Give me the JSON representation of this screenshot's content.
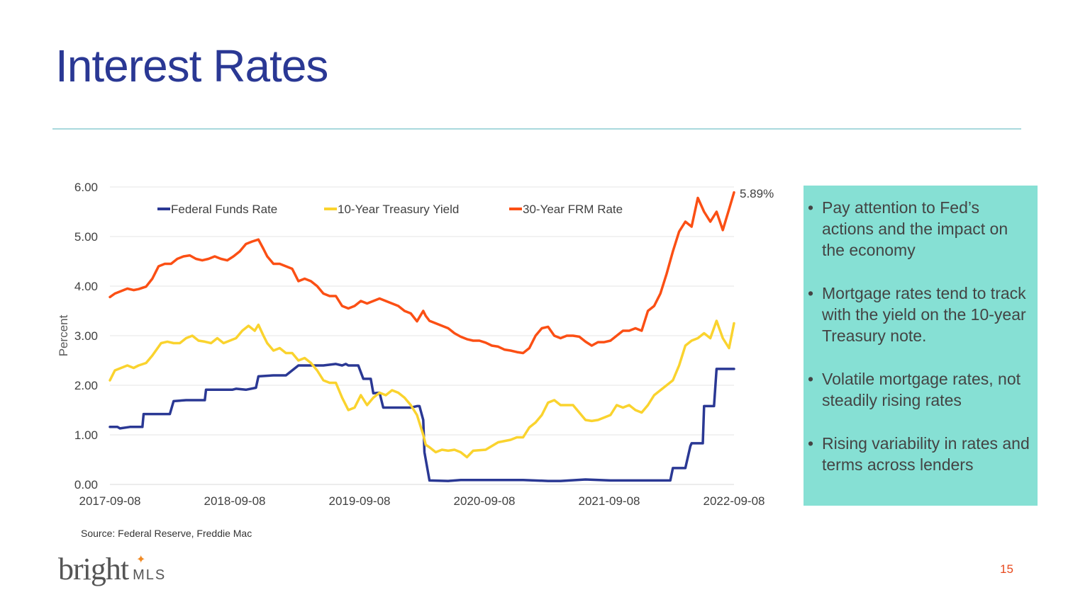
{
  "slide": {
    "title": "Interest Rates",
    "source": "Source: Federal Reserve, Freddie Mac",
    "logo_text": "bright",
    "logo_suffix": "MLS",
    "page_number": "15",
    "colors": {
      "title": "#2a3894",
      "rule": "#a9d9dd",
      "panel": "#86e0d4",
      "page_number": "#e8491d"
    }
  },
  "bullets": [
    "Pay attention to Fed’s actions and the impact on the economy",
    "Mortgage rates tend to track with the yield on the 10-year Treasury note.",
    "Volatile mortgage rates, not steadily rising rates",
    "Rising variability in rates and terms across lenders"
  ],
  "chart_data": {
    "type": "line",
    "ylabel": "Percent",
    "ylim": [
      0,
      6
    ],
    "yticks": [
      "0.00",
      "1.00",
      "2.00",
      "3.00",
      "4.00",
      "5.00",
      "6.00"
    ],
    "xlim": [
      2017.69,
      2022.69
    ],
    "xticks": [
      {
        "x": 2017.69,
        "label": "2017-09-08"
      },
      {
        "x": 2018.69,
        "label": "2018-09-08"
      },
      {
        "x": 2019.69,
        "label": "2019-09-08"
      },
      {
        "x": 2020.69,
        "label": "2020-09-08"
      },
      {
        "x": 2021.69,
        "label": "2021-09-08"
      },
      {
        "x": 2022.69,
        "label": "2022-09-08"
      }
    ],
    "grid": true,
    "end_annotation": "5.89%",
    "series": [
      {
        "name": "Federal Funds Rate",
        "color": "#2a3894",
        "x": [
          2017.69,
          2017.75,
          2017.77,
          2017.85,
          2017.95,
          2017.96,
          2018.0,
          2018.17,
          2018.2,
          2018.3,
          2018.45,
          2018.46,
          2018.67,
          2018.7,
          2018.78,
          2018.86,
          2018.88,
          2019.0,
          2019.1,
          2019.2,
          2019.3,
          2019.4,
          2019.5,
          2019.55,
          2019.58,
          2019.6,
          2019.68,
          2019.72,
          2019.78,
          2019.8,
          2019.85,
          2019.88,
          2020.0,
          2020.1,
          2020.15,
          2020.17,
          2020.2,
          2020.21,
          2020.25,
          2020.4,
          2020.5,
          2020.8,
          2021.0,
          2021.2,
          2021.3,
          2021.5,
          2021.7,
          2021.9,
          2022.0,
          2022.1,
          2022.18,
          2022.2,
          2022.3,
          2022.34,
          2022.35,
          2022.44,
          2022.45,
          2022.53,
          2022.55,
          2022.69
        ],
        "values": [
          1.16,
          1.16,
          1.13,
          1.16,
          1.16,
          1.42,
          1.42,
          1.42,
          1.68,
          1.7,
          1.7,
          1.91,
          1.91,
          1.93,
          1.91,
          1.95,
          2.18,
          2.2,
          2.2,
          2.4,
          2.4,
          2.4,
          2.43,
          2.4,
          2.43,
          2.4,
          2.4,
          2.13,
          2.13,
          1.84,
          1.85,
          1.55,
          1.55,
          1.55,
          1.58,
          1.58,
          1.3,
          0.65,
          0.08,
          0.07,
          0.09,
          0.09,
          0.09,
          0.07,
          0.07,
          0.1,
          0.08,
          0.08,
          0.08,
          0.08,
          0.08,
          0.33,
          0.33,
          0.77,
          0.83,
          0.83,
          1.58,
          1.58,
          2.33,
          2.33
        ]
      },
      {
        "name": "10-Year Treasury Yield",
        "color": "#fad32e",
        "x": [
          2017.69,
          2017.73,
          2017.78,
          2017.83,
          2017.88,
          2017.92,
          2017.98,
          2018.03,
          2018.1,
          2018.15,
          2018.2,
          2018.25,
          2018.3,
          2018.35,
          2018.4,
          2018.45,
          2018.5,
          2018.55,
          2018.6,
          2018.65,
          2018.7,
          2018.75,
          2018.8,
          2018.85,
          2018.88,
          2018.92,
          2018.95,
          2019.0,
          2019.05,
          2019.1,
          2019.15,
          2019.2,
          2019.25,
          2019.3,
          2019.35,
          2019.4,
          2019.45,
          2019.5,
          2019.55,
          2019.6,
          2019.65,
          2019.7,
          2019.75,
          2019.8,
          2019.85,
          2019.9,
          2019.95,
          2020.0,
          2020.05,
          2020.1,
          2020.15,
          2020.2,
          2020.22,
          2020.25,
          2020.3,
          2020.35,
          2020.4,
          2020.45,
          2020.5,
          2020.55,
          2020.6,
          2020.7,
          2020.8,
          2020.9,
          2020.95,
          2021.0,
          2021.05,
          2021.1,
          2021.15,
          2021.2,
          2021.25,
          2021.3,
          2021.35,
          2021.4,
          2021.45,
          2021.5,
          2021.55,
          2021.6,
          2021.65,
          2021.7,
          2021.75,
          2021.8,
          2021.85,
          2021.9,
          2021.95,
          2022.0,
          2022.05,
          2022.1,
          2022.15,
          2022.2,
          2022.25,
          2022.3,
          2022.35,
          2022.4,
          2022.45,
          2022.5,
          2022.55,
          2022.6,
          2022.65,
          2022.69
        ],
        "values": [
          2.1,
          2.3,
          2.35,
          2.4,
          2.35,
          2.4,
          2.45,
          2.6,
          2.85,
          2.88,
          2.85,
          2.85,
          2.95,
          3.0,
          2.9,
          2.88,
          2.85,
          2.95,
          2.85,
          2.9,
          2.95,
          3.1,
          3.2,
          3.1,
          3.22,
          3.0,
          2.85,
          2.7,
          2.75,
          2.65,
          2.65,
          2.5,
          2.55,
          2.45,
          2.3,
          2.1,
          2.05,
          2.05,
          1.75,
          1.5,
          1.55,
          1.8,
          1.6,
          1.75,
          1.85,
          1.8,
          1.9,
          1.85,
          1.75,
          1.6,
          1.4,
          1.0,
          0.8,
          0.75,
          0.65,
          0.7,
          0.68,
          0.7,
          0.65,
          0.55,
          0.68,
          0.7,
          0.85,
          0.9,
          0.95,
          0.95,
          1.15,
          1.25,
          1.4,
          1.65,
          1.7,
          1.6,
          1.6,
          1.6,
          1.45,
          1.3,
          1.28,
          1.3,
          1.35,
          1.4,
          1.6,
          1.55,
          1.6,
          1.5,
          1.45,
          1.6,
          1.8,
          1.9,
          2.0,
          2.1,
          2.4,
          2.8,
          2.9,
          2.95,
          3.05,
          2.95,
          3.3,
          2.95,
          2.75,
          3.25
        ]
      },
      {
        "name": "30-Year FRM Rate",
        "color": "#fb4f14",
        "x": [
          2017.69,
          2017.73,
          2017.78,
          2017.83,
          2017.88,
          2017.92,
          2017.98,
          2018.03,
          2018.08,
          2018.13,
          2018.18,
          2018.23,
          2018.28,
          2018.33,
          2018.38,
          2018.43,
          2018.48,
          2018.53,
          2018.58,
          2018.63,
          2018.68,
          2018.73,
          2018.78,
          2018.83,
          2018.88,
          2018.92,
          2018.95,
          2019.0,
          2019.05,
          2019.1,
          2019.15,
          2019.2,
          2019.25,
          2019.3,
          2019.35,
          2019.4,
          2019.45,
          2019.5,
          2019.55,
          2019.6,
          2019.65,
          2019.7,
          2019.75,
          2019.8,
          2019.85,
          2019.9,
          2019.95,
          2020.0,
          2020.05,
          2020.1,
          2020.15,
          2020.2,
          2020.22,
          2020.25,
          2020.3,
          2020.35,
          2020.4,
          2020.45,
          2020.5,
          2020.55,
          2020.6,
          2020.65,
          2020.7,
          2020.75,
          2020.8,
          2020.85,
          2020.9,
          2020.95,
          2021.0,
          2021.05,
          2021.1,
          2021.15,
          2021.2,
          2021.25,
          2021.3,
          2021.35,
          2021.4,
          2021.45,
          2021.5,
          2021.55,
          2021.6,
          2021.65,
          2021.7,
          2021.75,
          2021.8,
          2021.85,
          2021.9,
          2021.95,
          2022.0,
          2022.05,
          2022.1,
          2022.15,
          2022.2,
          2022.25,
          2022.3,
          2022.35,
          2022.4,
          2022.45,
          2022.5,
          2022.55,
          2022.6,
          2022.65,
          2022.69
        ],
        "values": [
          3.78,
          3.85,
          3.9,
          3.95,
          3.92,
          3.94,
          3.99,
          4.15,
          4.4,
          4.45,
          4.45,
          4.55,
          4.6,
          4.62,
          4.55,
          4.52,
          4.55,
          4.6,
          4.55,
          4.52,
          4.6,
          4.7,
          4.85,
          4.9,
          4.94,
          4.75,
          4.6,
          4.45,
          4.45,
          4.4,
          4.35,
          4.1,
          4.15,
          4.1,
          4.0,
          3.85,
          3.8,
          3.8,
          3.6,
          3.55,
          3.6,
          3.7,
          3.65,
          3.7,
          3.75,
          3.7,
          3.65,
          3.6,
          3.5,
          3.45,
          3.29,
          3.5,
          3.4,
          3.3,
          3.25,
          3.2,
          3.15,
          3.05,
          2.98,
          2.93,
          2.9,
          2.9,
          2.86,
          2.8,
          2.78,
          2.72,
          2.7,
          2.67,
          2.65,
          2.75,
          3.0,
          3.15,
          3.18,
          3.0,
          2.95,
          3.0,
          3.0,
          2.98,
          2.88,
          2.8,
          2.87,
          2.87,
          2.9,
          3.0,
          3.1,
          3.1,
          3.15,
          3.1,
          3.5,
          3.6,
          3.85,
          4.25,
          4.7,
          5.1,
          5.3,
          5.2,
          5.78,
          5.5,
          5.3,
          5.5,
          5.13,
          5.55,
          5.89
        ]
      }
    ]
  }
}
